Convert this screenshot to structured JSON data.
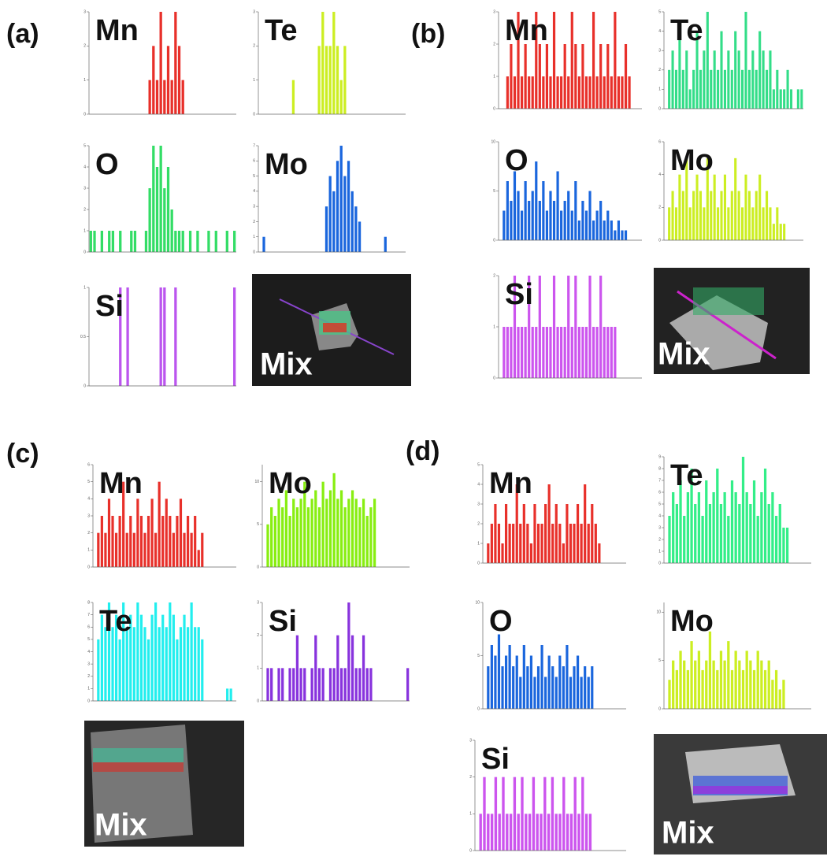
{
  "panels": [
    "(a)",
    "(b)",
    "(c)",
    "(d)"
  ],
  "images": [
    {
      "label": "Mix"
    },
    {
      "label": "Mix"
    },
    {
      "label": "Mix"
    },
    {
      "label": "Mix"
    }
  ],
  "chart_data": [
    {
      "type": "bar",
      "title": "Mn",
      "color": "#e8302a",
      "ylim": [
        0,
        3
      ],
      "yticks": [
        0,
        1,
        2,
        3
      ],
      "values": [
        0,
        0,
        0,
        0,
        0,
        0,
        0,
        0,
        0,
        0,
        0,
        0,
        0,
        0,
        0,
        0,
        1,
        2,
        1,
        3,
        1,
        2,
        1,
        3,
        2,
        1,
        0,
        0,
        0,
        0,
        0,
        0,
        0,
        0,
        0,
        0,
        0,
        0,
        0,
        0
      ]
    },
    {
      "type": "bar",
      "title": "Te",
      "color": "#ccee22",
      "ylim": [
        0,
        3
      ],
      "yticks": [
        0,
        1,
        2,
        3
      ],
      "values": [
        0,
        0,
        0,
        0,
        0,
        0,
        0,
        0,
        0,
        1,
        0,
        0,
        0,
        0,
        0,
        0,
        2,
        3,
        2,
        2,
        3,
        2,
        1,
        2,
        0,
        0,
        0,
        0,
        0,
        0,
        0,
        0,
        0,
        0,
        0,
        0,
        0,
        0,
        0,
        0
      ]
    },
    {
      "type": "bar",
      "title": "O",
      "color": "#33dd66",
      "ylim": [
        0,
        5
      ],
      "yticks": [
        0,
        1,
        2,
        3,
        4,
        5
      ],
      "values": [
        1,
        1,
        0,
        1,
        0,
        1,
        1,
        0,
        1,
        0,
        0,
        1,
        1,
        0,
        0,
        1,
        3,
        5,
        4,
        5,
        3,
        4,
        2,
        1,
        1,
        1,
        0,
        1,
        0,
        1,
        0,
        0,
        1,
        0,
        1,
        0,
        0,
        1,
        0,
        1
      ]
    },
    {
      "type": "bar",
      "title": "Mo",
      "color": "#1a66dd",
      "ylim": [
        0,
        7
      ],
      "yticks": [
        0,
        1,
        2,
        3,
        4,
        5,
        6,
        7
      ],
      "values": [
        0,
        1,
        0,
        0,
        0,
        0,
        0,
        0,
        0,
        0,
        0,
        0,
        0,
        0,
        0,
        0,
        0,
        0,
        3,
        5,
        4,
        6,
        7,
        5,
        6,
        4,
        3,
        2,
        0,
        0,
        0,
        0,
        0,
        0,
        1,
        0,
        0,
        0,
        0,
        0
      ]
    },
    {
      "type": "bar",
      "title": "Si",
      "color": "#bb55ee",
      "ylim": [
        0,
        1
      ],
      "yticks": [
        0,
        0.5,
        1
      ],
      "values": [
        0,
        0,
        0,
        0,
        0,
        0,
        0,
        0,
        1,
        0,
        1,
        0,
        0,
        0,
        0,
        0,
        0,
        0,
        0,
        1,
        1,
        0,
        0,
        1,
        0,
        0,
        0,
        0,
        0,
        0,
        0,
        0,
        0,
        0,
        0,
        0,
        0,
        0,
        0,
        1
      ]
    },
    {
      "type": "bar",
      "title": "Mn",
      "color": "#e8302a",
      "ylim": [
        0,
        3
      ],
      "yticks": [
        0,
        1,
        2,
        3
      ],
      "values": [
        0,
        0,
        1,
        2,
        1,
        3,
        1,
        2,
        1,
        1,
        3,
        2,
        1,
        2,
        1,
        3,
        1,
        1,
        2,
        1,
        3,
        2,
        1,
        2,
        1,
        1,
        3,
        1,
        2,
        1,
        2,
        1,
        3,
        1,
        1,
        2,
        1,
        0,
        0,
        0
      ]
    },
    {
      "type": "bar",
      "title": "Te",
      "color": "#33dd88",
      "ylim": [
        0,
        5
      ],
      "yticks": [
        0,
        1,
        2,
        3,
        4,
        5
      ],
      "values": [
        0,
        2,
        3,
        2,
        4,
        2,
        3,
        1,
        2,
        4,
        2,
        3,
        5,
        2,
        3,
        2,
        4,
        2,
        3,
        2,
        4,
        3,
        2,
        5,
        2,
        3,
        2,
        4,
        3,
        2,
        3,
        1,
        2,
        1,
        1,
        2,
        1,
        0,
        1,
        1
      ]
    },
    {
      "type": "bar",
      "title": "O",
      "color": "#1a66dd",
      "ylim": [
        0,
        10
      ],
      "yticks": [
        0,
        5,
        10
      ],
      "values": [
        0,
        3,
        6,
        4,
        7,
        5,
        3,
        6,
        4,
        5,
        8,
        4,
        6,
        3,
        5,
        4,
        7,
        3,
        4,
        5,
        3,
        6,
        2,
        4,
        3,
        5,
        2,
        3,
        4,
        2,
        3,
        2,
        1,
        2,
        1,
        1,
        0,
        0,
        0,
        0
      ]
    },
    {
      "type": "bar",
      "title": "Mo",
      "color": "#ccee22",
      "ylim": [
        0,
        6
      ],
      "yticks": [
        0,
        2,
        4,
        6
      ],
      "values": [
        0,
        2,
        3,
        2,
        4,
        3,
        5,
        2,
        3,
        4,
        3,
        2,
        5,
        3,
        4,
        2,
        3,
        4,
        2,
        3,
        5,
        3,
        2,
        4,
        3,
        2,
        3,
        4,
        2,
        3,
        2,
        1,
        2,
        1,
        1,
        0,
        0,
        0,
        0,
        0
      ]
    },
    {
      "type": "bar",
      "title": "Si",
      "color": "#cc55ee",
      "ylim": [
        0,
        2
      ],
      "yticks": [
        0,
        1,
        2
      ],
      "values": [
        0,
        1,
        1,
        1,
        2,
        1,
        1,
        1,
        2,
        1,
        1,
        2,
        1,
        1,
        1,
        2,
        1,
        1,
        1,
        2,
        1,
        2,
        1,
        1,
        1,
        2,
        1,
        1,
        2,
        1,
        1,
        1,
        1,
        0,
        0,
        0,
        0,
        0,
        0,
        0
      ]
    },
    {
      "type": "bar",
      "title": "Mn",
      "color": "#e8302a",
      "ylim": [
        0,
        6
      ],
      "yticks": [
        0,
        1,
        2,
        3,
        4,
        5,
        6
      ],
      "values": [
        0,
        2,
        3,
        2,
        4,
        3,
        2,
        3,
        5,
        2,
        3,
        2,
        4,
        3,
        2,
        3,
        4,
        2,
        5,
        3,
        4,
        3,
        2,
        3,
        4,
        2,
        3,
        2,
        3,
        1,
        2,
        0,
        0,
        0,
        0,
        0,
        0,
        0,
        0,
        0
      ]
    },
    {
      "type": "bar",
      "title": "Mo",
      "color": "#88ee11",
      "ylim": [
        0,
        12
      ],
      "yticks": [
        0,
        5,
        10
      ],
      "values": [
        0,
        5,
        7,
        6,
        8,
        7,
        9,
        6,
        8,
        7,
        8,
        10,
        7,
        8,
        9,
        7,
        10,
        8,
        9,
        11,
        8,
        9,
        7,
        8,
        9,
        8,
        7,
        8,
        6,
        7,
        8,
        0,
        0,
        0,
        0,
        0,
        0,
        0,
        0,
        0
      ]
    },
    {
      "type": "bar",
      "title": "Te",
      "color": "#22eeee",
      "ylim": [
        0,
        8
      ],
      "yticks": [
        0,
        1,
        2,
        3,
        4,
        5,
        6,
        7,
        8
      ],
      "values": [
        0,
        5,
        7,
        6,
        8,
        6,
        7,
        5,
        8,
        6,
        7,
        6,
        8,
        7,
        6,
        5,
        7,
        8,
        6,
        7,
        6,
        8,
        7,
        5,
        6,
        7,
        6,
        8,
        6,
        6,
        5,
        0,
        0,
        0,
        0,
        0,
        0,
        1,
        1,
        0
      ]
    },
    {
      "type": "bar",
      "title": "Si",
      "color": "#8833dd",
      "ylim": [
        0,
        3
      ],
      "yticks": [
        0,
        1,
        2,
        3
      ],
      "values": [
        0,
        1,
        1,
        0,
        1,
        1,
        0,
        1,
        1,
        2,
        1,
        1,
        0,
        1,
        2,
        1,
        1,
        0,
        1,
        1,
        2,
        1,
        1,
        3,
        2,
        1,
        1,
        2,
        1,
        1,
        0,
        0,
        0,
        0,
        0,
        0,
        0,
        0,
        0,
        1
      ]
    },
    {
      "type": "bar",
      "title": "Mn",
      "color": "#e8302a",
      "ylim": [
        0,
        5
      ],
      "yticks": [
        0,
        1,
        2,
        3,
        4,
        5
      ],
      "values": [
        0,
        1,
        2,
        3,
        2,
        1,
        3,
        2,
        2,
        4,
        2,
        3,
        2,
        1,
        3,
        2,
        2,
        3,
        4,
        2,
        3,
        2,
        1,
        3,
        2,
        2,
        3,
        2,
        4,
        2,
        3,
        2,
        1,
        0,
        0,
        0,
        0,
        0,
        0,
        0
      ]
    },
    {
      "type": "bar",
      "title": "Te",
      "color": "#33ee88",
      "ylim": [
        0,
        9
      ],
      "yticks": [
        0,
        1,
        2,
        3,
        4,
        5,
        6,
        7,
        8,
        9
      ],
      "values": [
        0,
        4,
        6,
        5,
        7,
        4,
        6,
        8,
        5,
        6,
        4,
        7,
        5,
        6,
        8,
        5,
        6,
        4,
        7,
        6,
        5,
        9,
        6,
        5,
        7,
        4,
        6,
        8,
        5,
        6,
        4,
        5,
        3,
        3,
        0,
        0,
        0,
        0,
        0,
        0
      ]
    },
    {
      "type": "bar",
      "title": "O",
      "color": "#1a66dd",
      "ylim": [
        0,
        10
      ],
      "yticks": [
        0,
        5,
        10
      ],
      "values": [
        0,
        4,
        6,
        5,
        7,
        4,
        5,
        6,
        4,
        5,
        3,
        6,
        4,
        5,
        3,
        4,
        6,
        3,
        5,
        4,
        3,
        5,
        4,
        6,
        3,
        4,
        5,
        3,
        4,
        3,
        4,
        0,
        0,
        0,
        0,
        0,
        0,
        0,
        0,
        0
      ]
    },
    {
      "type": "bar",
      "title": "Mo",
      "color": "#ccee22",
      "ylim": [
        0,
        11
      ],
      "yticks": [
        0,
        5,
        10
      ],
      "values": [
        0,
        3,
        5,
        4,
        6,
        5,
        4,
        7,
        5,
        6,
        4,
        5,
        8,
        5,
        4,
        6,
        5,
        7,
        4,
        6,
        5,
        4,
        6,
        5,
        4,
        6,
        5,
        4,
        5,
        3,
        4,
        2,
        3,
        0,
        0,
        0,
        0,
        0,
        0,
        0
      ]
    },
    {
      "type": "bar",
      "title": "Si",
      "color": "#cc55ee",
      "ylim": [
        0,
        3
      ],
      "yticks": [
        0,
        1,
        2,
        3
      ],
      "values": [
        0,
        1,
        2,
        1,
        1,
        2,
        1,
        2,
        1,
        1,
        2,
        1,
        2,
        1,
        1,
        2,
        1,
        1,
        2,
        1,
        2,
        1,
        1,
        2,
        1,
        1,
        2,
        1,
        2,
        1,
        1,
        0,
        0,
        0,
        0,
        0,
        0,
        0,
        0,
        0
      ]
    }
  ]
}
